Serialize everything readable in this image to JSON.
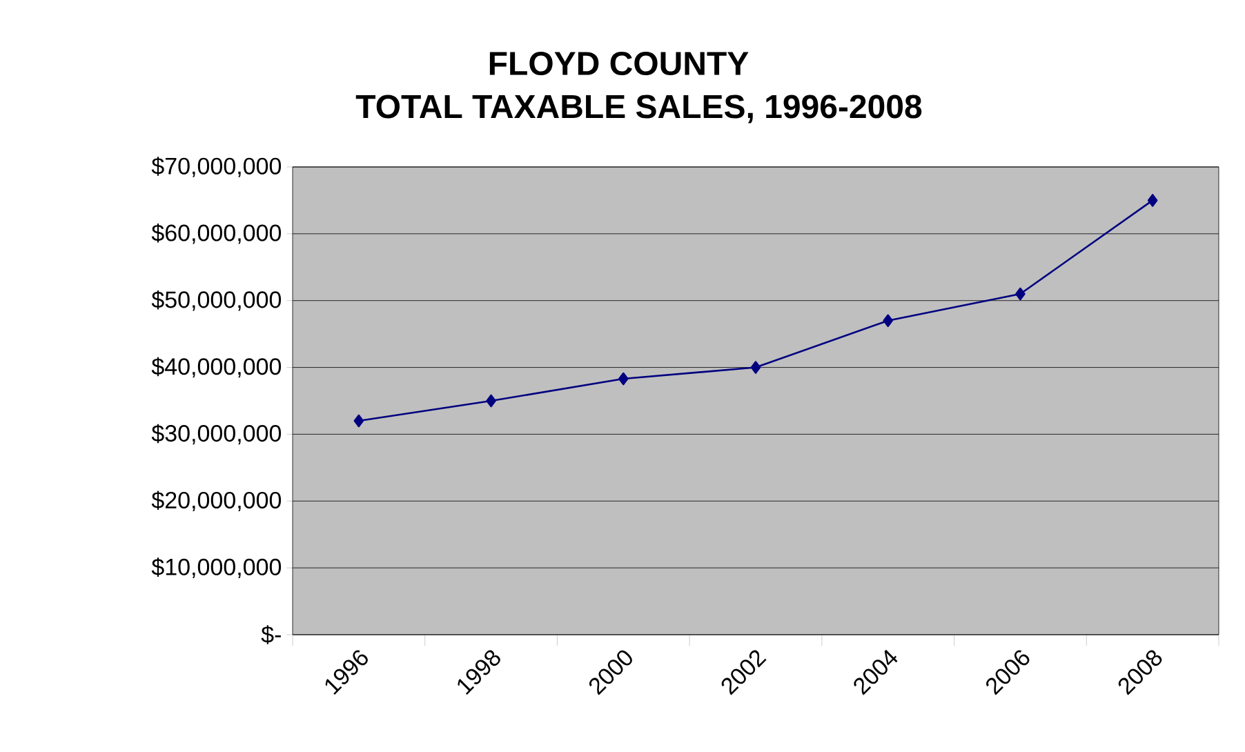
{
  "chart_data": {
    "type": "line",
    "title": "FLOYD COUNTY",
    "subtitle": "TOTAL TAXABLE SALES, 1996-2008",
    "categories": [
      "1996",
      "1998",
      "2000",
      "2002",
      "2004",
      "2006",
      "2008"
    ],
    "series": [
      {
        "color": "#000080",
        "values": [
          32000000,
          35000000,
          38300000,
          40000000,
          47000000,
          51000000,
          65000000
        ]
      }
    ],
    "ylim": [
      0,
      70000000
    ],
    "yticks": [
      {
        "value": 0,
        "label": "$-"
      },
      {
        "value": 10000000,
        "label": "$10,000,000"
      },
      {
        "value": 20000000,
        "label": "$20,000,000"
      },
      {
        "value": 30000000,
        "label": "$30,000,000"
      },
      {
        "value": 40000000,
        "label": "$40,000,000"
      },
      {
        "value": 50000000,
        "label": "$50,000,000"
      },
      {
        "value": 60000000,
        "label": "$60,000,000"
      },
      {
        "value": 70000000,
        "label": "$70,000,000"
      }
    ],
    "grid": "y",
    "marker": "diamond",
    "line_style": "solid"
  }
}
